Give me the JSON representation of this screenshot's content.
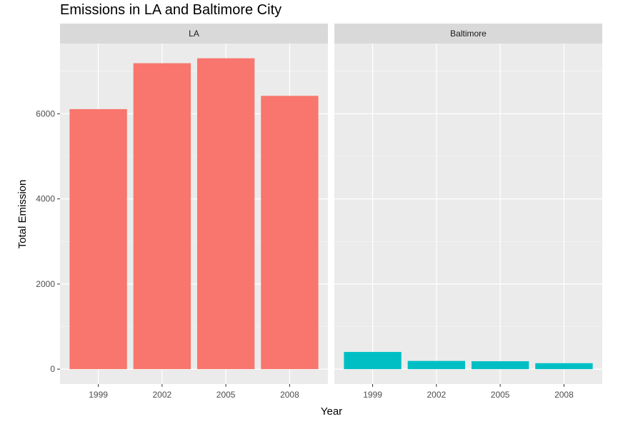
{
  "chart_data": {
    "type": "bar",
    "title": "Emissions in LA and Baltimore City",
    "xlabel": "Year",
    "ylabel": "Total Emission",
    "categories": [
      "1999",
      "2002",
      "2005",
      "2008"
    ],
    "ylim": [
      -350,
      7650
    ],
    "yticks": [
      0,
      2000,
      4000,
      6000
    ],
    "grid": true,
    "legend": "none",
    "panels": [
      {
        "name": "LA",
        "color": "#F8766D",
        "values": [
          6109,
          7188,
          7304,
          6421
        ]
      },
      {
        "name": "Baltimore",
        "color": "#00BFC4",
        "values": [
          404,
          193,
          186,
          140
        ]
      }
    ]
  }
}
